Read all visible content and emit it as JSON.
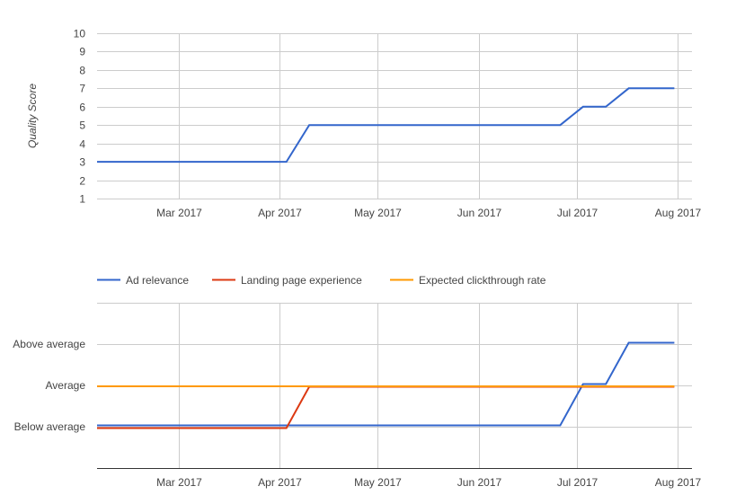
{
  "chart_data": [
    {
      "type": "line",
      "title": "",
      "xlabel": "",
      "ylabel": "Quality Score",
      "ylim": [
        1,
        10
      ],
      "yticks": [
        "1",
        "2",
        "3",
        "4",
        "5",
        "6",
        "7",
        "8",
        "9",
        "10"
      ],
      "xticks": [
        {
          "label": "Mar 2017",
          "date": "2017-03-01"
        },
        {
          "label": "Apr 2017",
          "date": "2017-04-01"
        },
        {
          "label": "May 2017",
          "date": "2017-05-01"
        },
        {
          "label": "Jun 2017",
          "date": "2017-06-01"
        },
        {
          "label": "Jul 2017",
          "date": "2017-07-01"
        },
        {
          "label": "Aug 2017",
          "date": "2017-08-01"
        }
      ],
      "xlim": [
        "2017-02-04",
        "2017-08-06"
      ],
      "grid": true,
      "legend": "none",
      "series": [
        {
          "color": "#3366cc",
          "points": [
            [
              "2017-02-04",
              3
            ],
            [
              "2017-04-03",
              3
            ],
            [
              "2017-04-10",
              5
            ],
            [
              "2017-06-26",
              5
            ],
            [
              "2017-07-03",
              6
            ],
            [
              "2017-07-10",
              6
            ],
            [
              "2017-07-17",
              7
            ],
            [
              "2017-07-31",
              7
            ]
          ]
        }
      ]
    },
    {
      "type": "line",
      "title": "",
      "xlabel": "",
      "ylabel": "",
      "ylim": [
        0,
        4
      ],
      "yticks": [
        {
          "label": "Below average",
          "value": 1
        },
        {
          "label": "Average",
          "value": 2
        },
        {
          "label": "Above average",
          "value": 3
        }
      ],
      "xticks": [
        {
          "label": "Mar 2017",
          "date": "2017-03-01"
        },
        {
          "label": "Apr 2017",
          "date": "2017-04-01"
        },
        {
          "label": "May 2017",
          "date": "2017-05-01"
        },
        {
          "label": "Jun 2017",
          "date": "2017-06-01"
        },
        {
          "label": "Jul 2017",
          "date": "2017-07-01"
        },
        {
          "label": "Aug 2017",
          "date": "2017-08-01"
        }
      ],
      "xlim": [
        "2017-02-04",
        "2017-08-06"
      ],
      "grid": true,
      "legend": "top-left",
      "series": [
        {
          "name": "Ad relevance",
          "color": "#3366cc",
          "points": [
            [
              "2017-02-04",
              1
            ],
            [
              "2017-06-26",
              1
            ],
            [
              "2017-07-03",
              2
            ],
            [
              "2017-07-10",
              2
            ],
            [
              "2017-07-17",
              3
            ],
            [
              "2017-07-31",
              3
            ]
          ]
        },
        {
          "name": "Landing page experience",
          "color": "#dc3912",
          "points": [
            [
              "2017-02-04",
              1
            ],
            [
              "2017-04-03",
              1
            ],
            [
              "2017-04-10",
              2
            ],
            [
              "2017-07-31",
              2
            ]
          ]
        },
        {
          "name": "Expected clickthrough rate",
          "color": "#ff9900",
          "points": [
            [
              "2017-02-04",
              2
            ],
            [
              "2017-07-31",
              2
            ]
          ]
        }
      ]
    }
  ]
}
